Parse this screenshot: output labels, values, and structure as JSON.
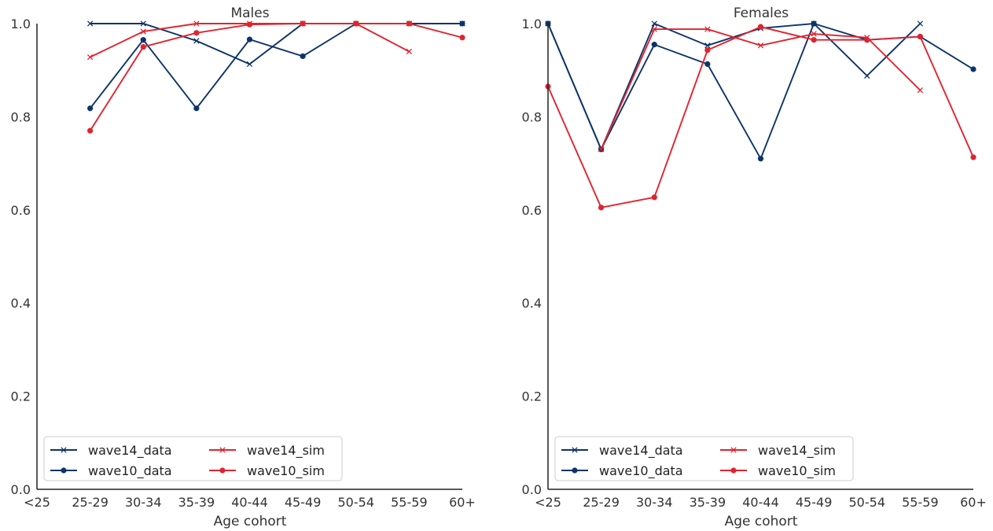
{
  "colors": {
    "data": "#0d3468",
    "sim": "#e0242f",
    "axis": "#222222",
    "text": "#333333"
  },
  "chart_data": [
    {
      "type": "line",
      "title": "Males",
      "xlabel": "Age cohort",
      "ylabel": "",
      "categories": [
        "<25",
        "25-29",
        "30-34",
        "35-39",
        "40-44",
        "45-49",
        "50-54",
        "55-59",
        "60+"
      ],
      "yticks": [
        "0.0",
        "0.2",
        "0.4",
        "0.6",
        "0.8",
        "1.0"
      ],
      "ylim": [
        0,
        1
      ],
      "grid": false,
      "legend": "lower-left, 2 columns",
      "series": [
        {
          "name": "wave14_data",
          "marker": "x",
          "color": "#0d3468",
          "values": [
            null,
            1.0,
            1.0,
            0.963,
            0.913,
            1.0,
            1.0,
            1.0,
            1.0
          ]
        },
        {
          "name": "wave10_data",
          "marker": "dot",
          "color": "#0d3468",
          "values": [
            null,
            0.818,
            0.965,
            0.818,
            0.966,
            0.93,
            1.0,
            null,
            1.0
          ]
        },
        {
          "name": "wave14_sim",
          "marker": "x",
          "color": "#e0242f",
          "values": [
            null,
            0.928,
            0.983,
            1.0,
            1.0,
            1.0,
            1.0,
            0.94,
            null
          ]
        },
        {
          "name": "wave10_sim",
          "marker": "dot",
          "color": "#e0242f",
          "values": [
            null,
            0.77,
            0.95,
            0.98,
            0.998,
            1.0,
            1.0,
            1.0,
            0.97
          ]
        }
      ]
    },
    {
      "type": "line",
      "title": "Females",
      "xlabel": "Age cohort",
      "ylabel": "",
      "categories": [
        "<25",
        "25-29",
        "30-34",
        "35-39",
        "40-44",
        "45-49",
        "50-54",
        "55-59",
        "60+"
      ],
      "yticks": [
        "0.0",
        "0.2",
        "0.4",
        "0.6",
        "0.8",
        "1.0"
      ],
      "ylim": [
        0,
        1
      ],
      "grid": false,
      "legend": "lower-left, 2 columns",
      "series": [
        {
          "name": "wave14_data",
          "marker": "x",
          "color": "#0d3468",
          "values": [
            1.0,
            0.73,
            1.0,
            0.953,
            0.99,
            1.0,
            0.888,
            1.0,
            null
          ]
        },
        {
          "name": "wave10_data",
          "marker": "dot",
          "color": "#0d3468",
          "values": [
            1.0,
            0.73,
            0.955,
            0.913,
            0.71,
            1.0,
            0.965,
            0.972,
            0.902
          ]
        },
        {
          "name": "wave14_sim",
          "marker": "x",
          "color": "#e0242f",
          "values": [
            null,
            0.73,
            0.988,
            0.988,
            0.953,
            0.978,
            0.97,
            0.857,
            null
          ]
        },
        {
          "name": "wave10_sim",
          "marker": "dot",
          "color": "#e0242f",
          "values": [
            0.865,
            0.605,
            0.627,
            0.943,
            0.993,
            0.965,
            0.965,
            0.972,
            0.713
          ]
        }
      ]
    }
  ]
}
